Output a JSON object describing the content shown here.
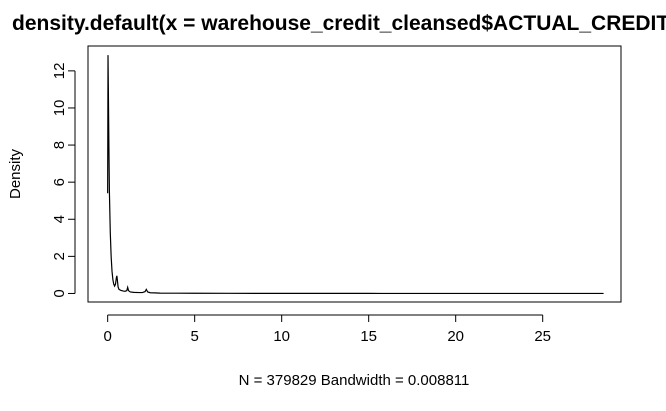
{
  "chart_data": {
    "type": "line",
    "title": "density.default(x = warehouse_credit_cleansed$ACTUAL_CREDIT)",
    "xlabel": "N = 379829   Bandwidth = 0.008811",
    "ylabel": "Density",
    "xlim": [
      -1.13,
      29.5
    ],
    "ylim": [
      -0.46,
      13.34
    ],
    "x_ticks": [
      0,
      5,
      10,
      15,
      20,
      25
    ],
    "x_tick_labels": [
      "0",
      "5",
      "10",
      "15",
      "20",
      "25"
    ],
    "y_ticks": [
      0,
      2,
      4,
      6,
      8,
      10,
      12
    ],
    "y_tick_labels": [
      "0",
      "2",
      "4",
      "6",
      "8",
      "10",
      "12"
    ],
    "grid": false,
    "series": [
      {
        "x": [
          0.0,
          0.02,
          0.04,
          0.07,
          0.1,
          0.15,
          0.2,
          0.25,
          0.3,
          0.35,
          0.4,
          0.45,
          0.5,
          0.53,
          0.56,
          0.6,
          0.65,
          0.75,
          0.9,
          1.0,
          1.1,
          1.15,
          1.2,
          1.3,
          1.5,
          1.8,
          2.0,
          2.15,
          2.22,
          2.3,
          2.45,
          2.7,
          3.0,
          4.0,
          5.0,
          7.0,
          9.0,
          12.0,
          15.0,
          20.0,
          25.0,
          28.5
        ],
        "y": [
          5.4,
          12.85,
          11.0,
          8.0,
          5.5,
          3.3,
          2.0,
          1.2,
          0.75,
          0.5,
          0.4,
          0.5,
          0.85,
          0.95,
          0.7,
          0.35,
          0.22,
          0.17,
          0.13,
          0.12,
          0.15,
          0.33,
          0.15,
          0.08,
          0.06,
          0.05,
          0.05,
          0.1,
          0.22,
          0.08,
          0.04,
          0.03,
          0.02,
          0.015,
          0.01,
          0.008,
          0.006,
          0.004,
          0.003,
          0.002,
          0.002,
          0.002
        ]
      }
    ]
  }
}
